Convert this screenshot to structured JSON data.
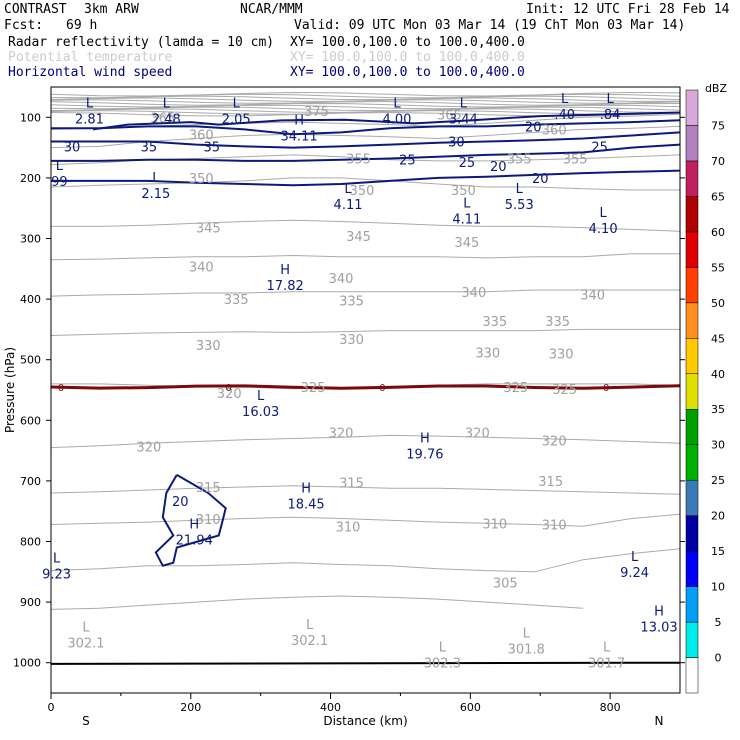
{
  "header": {
    "project": "CONTRAST",
    "model": "3km ARW",
    "org": "NCAR/MMM",
    "init": "Init: 12 UTC Fri 28 Feb 14",
    "fcst_label": "Fcst:",
    "fcst_value": "69 h",
    "valid": "Valid: 09 UTC Mon 03 Mar 14 (19 ChT Mon 03 Mar 14)"
  },
  "fields": [
    {
      "label": "Radar reflectivity (lamda = 10 cm)",
      "xy": "XY= 100.0,100.0 to 100.0,400.0",
      "color": "#000000"
    },
    {
      "label": "Potential temperature",
      "xy": "XY= 100.0,100.0 to 100.0,400.0",
      "color": "#cccccc"
    },
    {
      "label": "Horizontal wind speed",
      "xy": "XY= 100.0,100.0 to 100.0,400.0",
      "color": "#000080"
    }
  ],
  "colors": {
    "wind": "#0a1a7a",
    "theta": "#aaaaaa",
    "freezing": "#7a0a0a",
    "ground": "#000000"
  },
  "chart_data": {
    "type": "cross-section",
    "xlabel": "Distance (km)",
    "ylabel": "Pressure (hPa)",
    "xlim": [
      0,
      900
    ],
    "ylim": [
      1050,
      50
    ],
    "xticks": [
      0,
      200,
      400,
      600,
      800
    ],
    "yticks": [
      100,
      200,
      300,
      400,
      500,
      600,
      700,
      800,
      900,
      1000
    ],
    "end_labels": {
      "left": "S",
      "right": "N"
    },
    "colorbar": {
      "unit": "dBZ",
      "levels": [
        0,
        5,
        10,
        15,
        20,
        25,
        30,
        35,
        40,
        45,
        50,
        55,
        60,
        65,
        70,
        75
      ],
      "colors": [
        "#ffffff",
        "#00ecec",
        "#01a0f6",
        "#0000f6",
        "#0000a0",
        "#3a7ab8",
        "#00b000",
        "#00a000",
        "#e0e000",
        "#ffc800",
        "#ff9020",
        "#ff4000",
        "#e00000",
        "#b00000",
        "#c02060",
        "#b080c0",
        "#d8a8d8"
      ]
    },
    "theta_isentropes": [
      {
        "value": 302,
        "p": [
          912,
          910,
          905,
          900,
          895,
          892,
          890,
          892,
          895,
          900,
          905,
          910
        ]
      },
      {
        "value": 305,
        "p": [
          848,
          845,
          840,
          840,
          838,
          835,
          838,
          840,
          845,
          848,
          850,
          830,
          820,
          812
        ]
      },
      {
        "value": 310,
        "p": [
          772,
          770,
          768,
          765,
          762,
          760,
          762,
          765,
          768,
          770,
          772,
          775,
          762,
          755
        ]
      },
      {
        "value": 315,
        "p": [
          720,
          718,
          715,
          712,
          710,
          708,
          710,
          712,
          712,
          714,
          716,
          718,
          720,
          722
        ]
      },
      {
        "value": 320,
        "p": [
          645,
          642,
          638,
          635,
          632,
          630,
          628,
          625,
          626,
          628,
          630,
          632,
          635,
          638
        ]
      },
      {
        "value": 325,
        "p": [
          540,
          540,
          542,
          544,
          545,
          548,
          546,
          544,
          542,
          540,
          540,
          540,
          540,
          542
        ]
      },
      {
        "value": 330,
        "p": [
          460,
          458,
          456,
          455,
          454,
          455,
          454,
          452,
          452,
          452,
          452,
          450,
          450,
          450
        ]
      },
      {
        "value": 335,
        "p": [
          395,
          393,
          392,
          390,
          390,
          388,
          388,
          388,
          388,
          388,
          385,
          385,
          385,
          385
        ]
      },
      {
        "value": 340,
        "p": [
          335,
          334,
          332,
          330,
          330,
          328,
          330,
          330,
          330,
          332,
          330,
          330,
          325,
          325
        ]
      },
      {
        "value": 345,
        "p": [
          280,
          280,
          278,
          275,
          272,
          270,
          272,
          275,
          278,
          280,
          280,
          282,
          285,
          288
        ]
      },
      {
        "value": 350,
        "p": [
          215,
          212,
          210,
          208,
          205,
          200,
          200,
          205,
          210,
          215,
          215,
          218,
          220,
          220
        ]
      },
      {
        "value": 355,
        "p": [
          178,
          175,
          170,
          168,
          165,
          162,
          165,
          170,
          172,
          172,
          170,
          168,
          165,
          162
        ]
      },
      {
        "value": 360,
        "p": [
          150,
          148,
          140,
          135,
          130,
          128,
          130,
          132,
          135,
          130,
          125,
          120,
          118,
          115
        ]
      },
      {
        "value": 365,
        "p": [
          120,
          118,
          115,
          112,
          110,
          108,
          110,
          112,
          115,
          110,
          105,
          100,
          98,
          95
        ]
      }
    ],
    "theta_labels": [
      {
        "text": "350",
        "x": 215,
        "p": 200
      },
      {
        "text": "350",
        "x": 445,
        "p": 220
      },
      {
        "text": "350",
        "x": 590,
        "p": 220
      },
      {
        "text": "345",
        "x": 225,
        "p": 282
      },
      {
        "text": "345",
        "x": 440,
        "p": 296
      },
      {
        "text": "345",
        "x": 595,
        "p": 306
      },
      {
        "text": "340",
        "x": 215,
        "p": 346
      },
      {
        "text": "340",
        "x": 415,
        "p": 365
      },
      {
        "text": "340",
        "x": 605,
        "p": 388
      },
      {
        "text": "340",
        "x": 775,
        "p": 392
      },
      {
        "text": "335",
        "x": 265,
        "p": 400
      },
      {
        "text": "335",
        "x": 430,
        "p": 402
      },
      {
        "text": "335",
        "x": 635,
        "p": 436
      },
      {
        "text": "335",
        "x": 725,
        "p": 436
      },
      {
        "text": "330",
        "x": 225,
        "p": 476
      },
      {
        "text": "330",
        "x": 430,
        "p": 466
      },
      {
        "text": "330",
        "x": 625,
        "p": 488
      },
      {
        "text": "330",
        "x": 730,
        "p": 490
      },
      {
        "text": "320",
        "x": 140,
        "p": 643
      },
      {
        "text": "320",
        "x": 415,
        "p": 620
      },
      {
        "text": "320",
        "x": 610,
        "p": 620
      },
      {
        "text": "320",
        "x": 720,
        "p": 633
      },
      {
        "text": "315",
        "x": 225,
        "p": 710
      },
      {
        "text": "315",
        "x": 430,
        "p": 703
      },
      {
        "text": "315",
        "x": 715,
        "p": 700
      },
      {
        "text": "310",
        "x": 225,
        "p": 763
      },
      {
        "text": "310",
        "x": 425,
        "p": 775
      },
      {
        "text": "310",
        "x": 635,
        "p": 770
      },
      {
        "text": "310",
        "x": 720,
        "p": 772
      },
      {
        "text": "305",
        "x": 650,
        "p": 868
      },
      {
        "text": "325",
        "x": 375,
        "p": 545
      },
      {
        "text": "325",
        "x": 665,
        "p": 545
      },
      {
        "text": "325",
        "x": 735,
        "p": 548
      },
      {
        "text": "320",
        "x": 255,
        "p": 555
      },
      {
        "text": "375",
        "x": 380,
        "p": 90
      },
      {
        "text": "365",
        "x": 160,
        "p": 100
      },
      {
        "text": "360",
        "x": 215,
        "p": 128
      },
      {
        "text": "360",
        "x": 720,
        "p": 120
      },
      {
        "text": "365",
        "x": 570,
        "p": 95
      },
      {
        "text": "355",
        "x": 440,
        "p": 168
      },
      {
        "text": "355",
        "x": 670,
        "p": 168
      },
      {
        "text": "355",
        "x": 750,
        "p": 168
      }
    ],
    "wind_isotachs": [
      {
        "value": 20,
        "p": [
          205,
          205,
          205,
          208,
          210,
          212,
          210,
          205,
          200,
          198,
          195,
          192,
          190,
          188
        ]
      },
      {
        "value": 25,
        "p": [
          172,
          172,
          170,
          170,
          172,
          172,
          170,
          168,
          165,
          162,
          160,
          158,
          150,
          145
        ]
      },
      {
        "value": 30,
        "p": [
          140,
          140,
          140,
          145,
          148,
          150,
          148,
          145,
          142,
          140,
          138,
          135,
          130,
          125
        ]
      },
      {
        "value": 35,
        "p": [
          118,
          118,
          115,
          115,
          120,
          128,
          125,
          118,
          115,
          115,
          112,
          110,
          108,
          105
        ]
      }
    ],
    "wind_labels": [
      {
        "text": "30",
        "x": 30,
        "p": 148
      },
      {
        "text": "35",
        "x": 140,
        "p": 148
      },
      {
        "text": "35",
        "x": 230,
        "p": 148
      },
      {
        "text": "30",
        "x": 580,
        "p": 140
      },
      {
        "text": "25",
        "x": 595,
        "p": 174
      },
      {
        "text": "20",
        "x": 640,
        "p": 180
      },
      {
        "text": "25",
        "x": 510,
        "p": 170
      },
      {
        "text": "20",
        "x": 700,
        "p": 200
      },
      {
        "text": "25",
        "x": 785,
        "p": 148
      },
      {
        "text": "20",
        "x": 690,
        "p": 115
      },
      {
        "text": "20",
        "x": 185,
        "p": 733
      }
    ],
    "freezing_level": {
      "value": 0,
      "p": 545
    },
    "highs_lows": [
      {
        "type": "L",
        "value": "2.81",
        "x": 55,
        "p": 97
      },
      {
        "type": "L",
        "value": "2.48",
        "x": 165,
        "p": 97
      },
      {
        "type": "L",
        "value": "2.05",
        "x": 265,
        "p": 97
      },
      {
        "type": "H",
        "value": "34.11",
        "x": 355,
        "p": 125
      },
      {
        "type": "L",
        "value": "4.00",
        "x": 495,
        "p": 97
      },
      {
        "type": "L",
        "value": "3.44",
        "x": 590,
        "p": 97
      },
      {
        "type": "L",
        "value": ".40",
        "x": 735,
        "p": 90
      },
      {
        "type": "L",
        "value": ".84",
        "x": 800,
        "p": 90
      },
      {
        "type": "L",
        "value": "99",
        "x": 12,
        "p": 200
      },
      {
        "type": "L",
        "value": "2.15",
        "x": 150,
        "p": 220
      },
      {
        "type": "L",
        "value": "4.11",
        "x": 425,
        "p": 238
      },
      {
        "type": "L",
        "value": "4.11",
        "x": 595,
        "p": 262
      },
      {
        "type": "L",
        "value": "5.53",
        "x": 670,
        "p": 238
      },
      {
        "type": "L",
        "value": "4.10",
        "x": 790,
        "p": 278
      },
      {
        "type": "H",
        "value": "17.82",
        "x": 335,
        "p": 372
      },
      {
        "type": "L",
        "value": "16.03",
        "x": 300,
        "p": 580
      },
      {
        "type": "H",
        "value": "19.76",
        "x": 535,
        "p": 650
      },
      {
        "type": "H",
        "value": "18.45",
        "x": 365,
        "p": 732
      },
      {
        "type": "H",
        "value": "21.94",
        "x": 205,
        "p": 792
      },
      {
        "type": "L",
        "value": "9.23",
        "x": 8,
        "p": 848
      },
      {
        "type": "L",
        "value": "9.24",
        "x": 835,
        "p": 845
      },
      {
        "type": "H",
        "value": "13.03",
        "x": 870,
        "p": 935
      },
      {
        "type": "L",
        "value": "302.1",
        "x": 50,
        "p": 962
      },
      {
        "type": "L",
        "value": "302.1",
        "x": 370,
        "p": 958
      },
      {
        "type": "L",
        "value": "302.3",
        "x": 560,
        "p": 995
      },
      {
        "type": "L",
        "value": "301.8",
        "x": 680,
        "p": 972
      },
      {
        "type": "L",
        "value": "301.7",
        "x": 795,
        "p": 995
      }
    ]
  }
}
